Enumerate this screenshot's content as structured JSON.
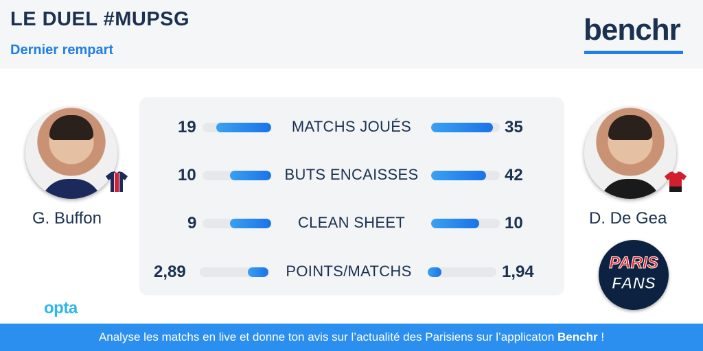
{
  "header": {
    "title": "LE DUEL #MUPSG",
    "subtitle": "Dernier rempart",
    "brand": "benchr"
  },
  "players": {
    "left": {
      "name": "G. Buffon",
      "jersey_icon": "psg-jersey-icon",
      "jersey_color": "#1b2a5a",
      "accent": "#d6203a"
    },
    "right": {
      "name": "D. De Gea",
      "jersey_icon": "manutd-jersey-icon",
      "jersey_color": "#d0202e",
      "accent": "#1a1a1a"
    }
  },
  "stats": [
    {
      "label": "MATCHS JOUÉS",
      "left": "19",
      "right": "35",
      "left_fill": 0.8,
      "right_fill": 0.9
    },
    {
      "label": "BUTS ENCAISSES",
      "left": "10",
      "right": "42",
      "left_fill": 0.6,
      "right_fill": 0.8
    },
    {
      "label": "CLEAN SHEET",
      "left": "9",
      "right": "10",
      "left_fill": 0.6,
      "right_fill": 0.7
    },
    {
      "label": "POINTS/MATCHS",
      "left": "2,89",
      "right": "1,94",
      "left_fill": 0.3,
      "right_fill": 0.2
    }
  ],
  "source": "opta",
  "partner": {
    "line1": "PARIS",
    "line2": "FANS"
  },
  "footer": {
    "text": "Analyse les matchs en live et donne ton avis sur l’actualité des Parisiens sur l’applicaton ",
    "brand": "Benchr",
    "suffix": " !"
  },
  "colors": {
    "accent": "#1f7ee8",
    "navy": "#1b3150",
    "footer_bg": "#2b8ff0"
  }
}
